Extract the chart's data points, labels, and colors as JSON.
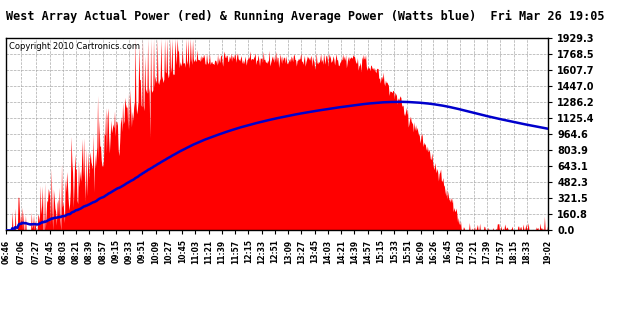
{
  "title": "West Array Actual Power (red) & Running Average Power (Watts blue)  Fri Mar 26 19:05",
  "copyright": "Copyright 2010 Cartronics.com",
  "yticks": [
    0.0,
    160.8,
    321.5,
    482.3,
    643.1,
    803.9,
    964.6,
    1125.4,
    1286.2,
    1447.0,
    1607.7,
    1768.5,
    1929.3
  ],
  "ymax": 1929.3,
  "bg_color": "#ffffff",
  "plot_bg": "#ffffff",
  "grid_color": "#aaaaaa",
  "bar_color": "#ff0000",
  "avg_color": "#0000cc",
  "x_start_hour": 6,
  "x_start_min": 46,
  "x_end_hour": 19,
  "x_end_min": 2,
  "tick_labels": [
    "06:46",
    "07:06",
    "07:27",
    "07:45",
    "08:03",
    "08:21",
    "08:39",
    "08:57",
    "09:15",
    "09:33",
    "09:51",
    "10:09",
    "10:27",
    "10:45",
    "11:03",
    "11:21",
    "11:39",
    "11:57",
    "12:15",
    "12:33",
    "12:51",
    "13:09",
    "13:27",
    "13:45",
    "14:03",
    "14:21",
    "14:39",
    "14:57",
    "15:15",
    "15:33",
    "15:51",
    "16:09",
    "16:26",
    "16:45",
    "17:03",
    "17:21",
    "17:39",
    "17:57",
    "18:15",
    "18:33",
    "19:02"
  ]
}
